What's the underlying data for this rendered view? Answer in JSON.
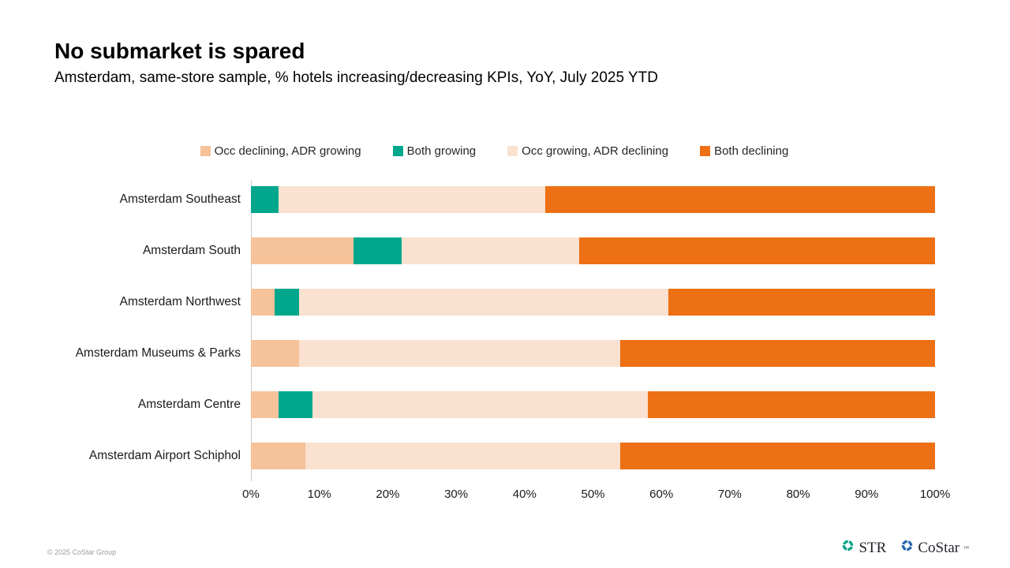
{
  "header": {
    "title": "No submarket is spared",
    "subtitle": "Amsterdam, same-store sample, % hotels increasing/decreasing KPIs, YoY, July 2025 YTD"
  },
  "chart_data": {
    "type": "bar",
    "orientation": "horizontal",
    "stacked": true,
    "grid": false,
    "legend_position": "top",
    "categories": [
      "Amsterdam Southeast",
      "Amsterdam South",
      "Amsterdam Northwest",
      "Amsterdam Museums & Parks",
      "Amsterdam Centre",
      "Amsterdam Airport Schiphol"
    ],
    "series": [
      {
        "name": "Occ declining, ADR growing",
        "color": "#F5C29A",
        "values": [
          0,
          15,
          3.5,
          7,
          4,
          8
        ]
      },
      {
        "name": "Both growing",
        "color": "#00A78C",
        "values": [
          4,
          7,
          3.5,
          0,
          5,
          0
        ]
      },
      {
        "name": "Occ growing, ADR declining",
        "color": "#FAE1D0",
        "values": [
          39,
          26,
          54,
          47,
          49,
          46
        ]
      },
      {
        "name": "Both declining",
        "color": "#ED7014",
        "values": [
          57,
          52,
          39,
          46,
          42,
          46
        ]
      }
    ],
    "x_ticks": [
      "0%",
      "10%",
      "20%",
      "30%",
      "40%",
      "50%",
      "60%",
      "70%",
      "80%",
      "90%",
      "100%"
    ],
    "xlim": [
      0,
      100
    ],
    "xlabel": "",
    "ylabel": ""
  },
  "footer": {
    "copyright": "© 2025 CoStar Group",
    "logos": [
      {
        "label": "STR",
        "trademark": "",
        "icon_color": "#00A385",
        "text_color": "#22262c"
      },
      {
        "label": "CoStar",
        "trademark": "™",
        "icon_color": "#2563AE",
        "text_color": "#22262c"
      }
    ]
  }
}
